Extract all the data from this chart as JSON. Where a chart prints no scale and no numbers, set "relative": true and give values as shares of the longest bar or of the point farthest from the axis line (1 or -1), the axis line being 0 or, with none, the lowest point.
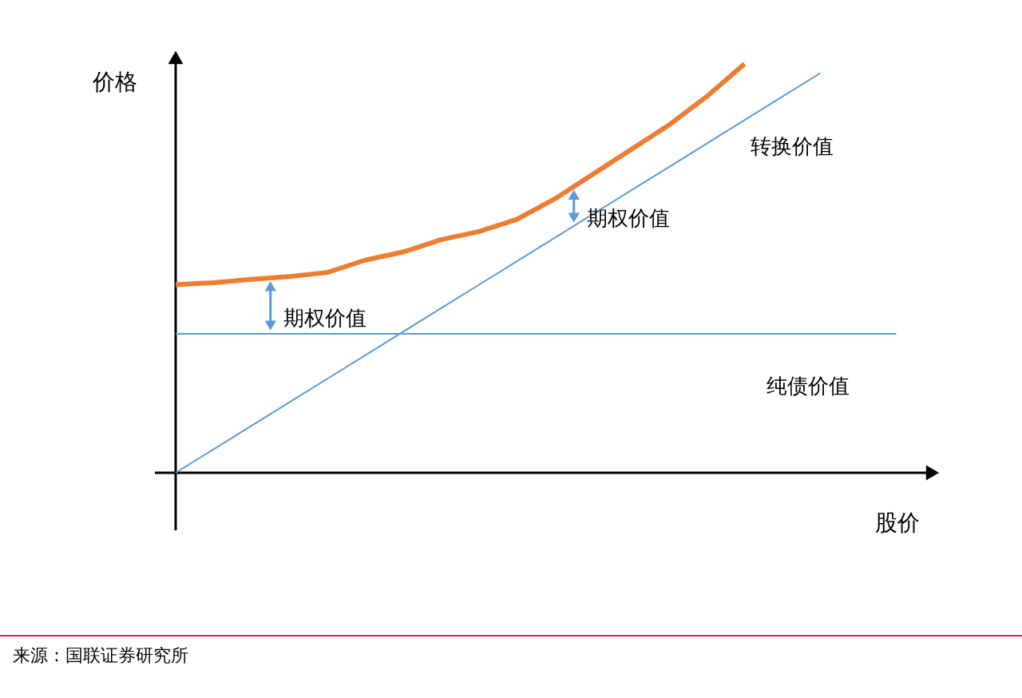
{
  "chart_data": {
    "type": "line",
    "relative": true,
    "xlabel": "股价",
    "ylabel": "价格",
    "categories": [
      null,
      null,
      null,
      null,
      null,
      null,
      null,
      null,
      null,
      null,
      null,
      null,
      null,
      null,
      null,
      null,
      null,
      null,
      null,
      null,
      null
    ],
    "series": [
      {
        "color": "#ed7d31",
        "values": [
          0.46,
          0.465,
          0.473,
          0.48,
          0.49,
          0.52,
          0.54,
          0.57,
          0.59,
          0.62,
          0.67,
          0.73,
          0.79,
          0.85,
          0.92,
          1.0,
          null,
          null,
          null,
          null,
          null
        ]
      },
      {
        "name": "转换价值",
        "color": "#5b9bd5",
        "values": [
          0,
          0.0575,
          0.115,
          0.1725,
          0.23,
          0.2875,
          0.345,
          0.4025,
          0.46,
          0.5175,
          0.575,
          0.6325,
          0.69,
          0.7475,
          0.805,
          0.8625,
          0.92,
          0.9775,
          null,
          null,
          null
        ]
      },
      {
        "name": "纯债价值",
        "color": "#5b9bd5",
        "values": [
          0.34,
          0.34,
          0.34,
          0.34,
          0.34,
          0.34,
          0.34,
          0.34,
          0.34,
          0.34,
          0.34,
          0.34,
          0.34,
          0.34,
          0.34,
          0.34,
          0.34,
          0.34,
          0.34,
          0.34,
          null
        ]
      }
    ],
    "annotations": [
      "期权价值",
      "期权价值",
      "来源：国联证券研究所"
    ]
  }
}
